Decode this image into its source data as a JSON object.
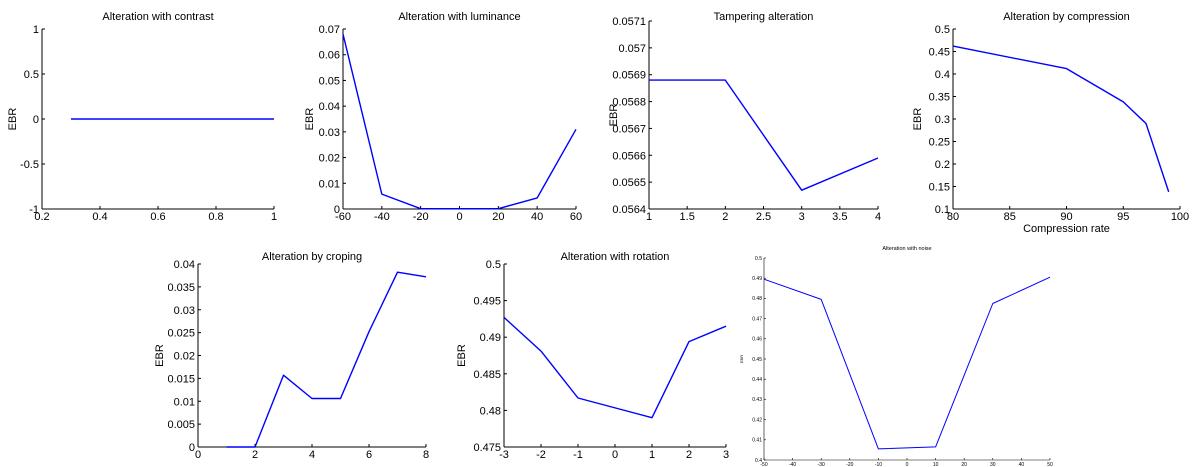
{
  "line_color": "#0000ff",
  "chart_data": [
    {
      "type": "line",
      "title": "Alteration with contrast",
      "xlabel": "",
      "ylabel": "EBR",
      "xlim": [
        0.2,
        1
      ],
      "ylim": [
        -1,
        1
      ],
      "xticks": [
        0.2,
        0.4,
        0.6,
        0.8,
        1
      ],
      "xtick_labels": [
        "0.2",
        "0.4",
        "0.6",
        "0.8",
        "1"
      ],
      "yticks": [
        -1,
        -0.5,
        0,
        0.5,
        1
      ],
      "ytick_labels": [
        "-1",
        "-0.5",
        "0",
        "0.5",
        "1"
      ],
      "grid": false,
      "series": [
        {
          "x": [
            0.3,
            0.4,
            0.5,
            0.6,
            0.7,
            0.8,
            0.9,
            1.0
          ],
          "y": [
            0,
            0,
            0,
            0,
            0,
            0,
            0,
            0
          ]
        }
      ]
    },
    {
      "type": "line",
      "title": "Alteration with luminance",
      "xlabel": "",
      "ylabel": "EBR",
      "xlim": [
        -60,
        60
      ],
      "ylim": [
        0,
        0.07
      ],
      "xticks": [
        -60,
        -40,
        -20,
        0,
        20,
        40,
        60
      ],
      "xtick_labels": [
        "-60",
        "-40",
        "-20",
        "0",
        "20",
        "40",
        "60"
      ],
      "yticks": [
        0,
        0.01,
        0.02,
        0.03,
        0.04,
        0.05,
        0.06,
        0.07
      ],
      "ytick_labels": [
        "0",
        "0.01",
        "0.02",
        "0.03",
        "0.04",
        "0.05",
        "0.06",
        "0.07"
      ],
      "grid": false,
      "series": [
        {
          "x": [
            -60,
            -40,
            -20,
            0,
            20,
            40,
            60
          ],
          "y": [
            0.068,
            0.0058,
            0.0001,
            0.0001,
            0.0001,
            0.0043,
            0.031
          ]
        }
      ]
    },
    {
      "type": "line",
      "title": "Tampering alteration",
      "xlabel": "",
      "ylabel": "EBR",
      "xlim": [
        1,
        4
      ],
      "ylim": [
        0.0564,
        0.0571
      ],
      "xticks": [
        1,
        1.5,
        2,
        2.5,
        3,
        3.5,
        4
      ],
      "xtick_labels": [
        "1",
        "1.5",
        "2",
        "2.5",
        "3",
        "3.5",
        "4"
      ],
      "yticks": [
        0.0564,
        0.0565,
        0.0566,
        0.0567,
        0.0568,
        0.0569,
        0.057,
        0.0571
      ],
      "ytick_labels": [
        "0.0564",
        "0.0565",
        "0.0566",
        "0.0567",
        "0.0568",
        "0.0569",
        "0.057",
        "0.0571"
      ],
      "grid": false,
      "series": [
        {
          "x": [
            1,
            2,
            3,
            4
          ],
          "y": [
            0.05688,
            0.05688,
            0.05647,
            0.05659
          ]
        }
      ]
    },
    {
      "type": "line",
      "title": "Alteration by compression",
      "xlabel": "Compression rate",
      "ylabel": "EBR",
      "xlim": [
        80,
        100
      ],
      "ylim": [
        0.1,
        0.5
      ],
      "xticks": [
        80,
        85,
        90,
        95,
        100
      ],
      "xtick_labels": [
        "80",
        "85",
        "90",
        "95",
        "100"
      ],
      "yticks": [
        0.1,
        0.15,
        0.2,
        0.25,
        0.3,
        0.35,
        0.4,
        0.45,
        0.5
      ],
      "ytick_labels": [
        "0.1",
        "0.15",
        "0.2",
        "0.25",
        "0.3",
        "0.35",
        "0.4",
        "0.45",
        "0.5"
      ],
      "grid": false,
      "series": [
        {
          "x": [
            80,
            90,
            95,
            97,
            99
          ],
          "y": [
            0.462,
            0.412,
            0.338,
            0.29,
            0.138
          ]
        }
      ]
    },
    {
      "type": "line",
      "title": "Alteration by croping",
      "xlabel": "",
      "ylabel": "EBR",
      "xlim": [
        0,
        8
      ],
      "ylim": [
        0,
        0.04
      ],
      "xticks": [
        0,
        2,
        4,
        6,
        8
      ],
      "xtick_labels": [
        "0",
        "2",
        "4",
        "6",
        "8"
      ],
      "yticks": [
        0,
        0.005,
        0.01,
        0.015,
        0.02,
        0.025,
        0.03,
        0.035,
        0.04
      ],
      "ytick_labels": [
        "0",
        "0.005",
        "0.01",
        "0.015",
        "0.02",
        "0.025",
        "0.03",
        "0.035",
        "0.04"
      ],
      "grid": false,
      "series": [
        {
          "x": [
            1,
            2,
            3,
            4,
            5,
            6,
            7,
            8
          ],
          "y": [
            0,
            0,
            0.0157,
            0.0106,
            0.0106,
            0.0252,
            0.0382,
            0.0372
          ]
        }
      ]
    },
    {
      "type": "line",
      "title": "Alteration with rotation",
      "xlabel": "",
      "ylabel": "EBR",
      "xlim": [
        -3,
        3
      ],
      "ylim": [
        0.475,
        0.5
      ],
      "xticks": [
        -3,
        -2,
        -1,
        0,
        1,
        2,
        3
      ],
      "xtick_labels": [
        "-3",
        "-2",
        "-1",
        "0",
        "1",
        "2",
        "3"
      ],
      "yticks": [
        0.475,
        0.48,
        0.485,
        0.49,
        0.495,
        0.5
      ],
      "ytick_labels": [
        "0.475",
        "0.48",
        "0.485",
        "0.49",
        "0.495",
        "0.5"
      ],
      "grid": false,
      "series": [
        {
          "x": [
            -3,
            -2,
            -1,
            1,
            2,
            3
          ],
          "y": [
            0.4927,
            0.4881,
            0.4817,
            0.479,
            0.4894,
            0.4915
          ]
        }
      ]
    },
    {
      "type": "line",
      "title": "Alteration with noise",
      "xlabel": "",
      "ylabel": "EBR",
      "xlim": [
        -50,
        50
      ],
      "ylim": [
        0.4,
        0.5
      ],
      "xticks": [
        -50,
        -40,
        -30,
        -20,
        -10,
        0,
        10,
        20,
        30,
        40,
        50
      ],
      "xtick_labels": [
        "-50",
        "-40",
        "-30",
        "-20",
        "-10",
        "0",
        "10",
        "20",
        "30",
        "40",
        "50"
      ],
      "yticks": [
        0.4,
        0.41,
        0.42,
        0.43,
        0.44,
        0.45,
        0.46,
        0.47,
        0.48,
        0.49,
        0.5
      ],
      "ytick_labels": [
        "0.4",
        "0.41",
        "0.42",
        "0.43",
        "0.44",
        "0.45",
        "0.46",
        "0.47",
        "0.48",
        "0.49",
        "0.5"
      ],
      "grid": false,
      "series": [
        {
          "x": [
            -50,
            -30,
            -10,
            10,
            30,
            50
          ],
          "y": [
            0.4895,
            0.4795,
            0.4055,
            0.4065,
            0.4775,
            0.4905
          ]
        }
      ]
    }
  ]
}
